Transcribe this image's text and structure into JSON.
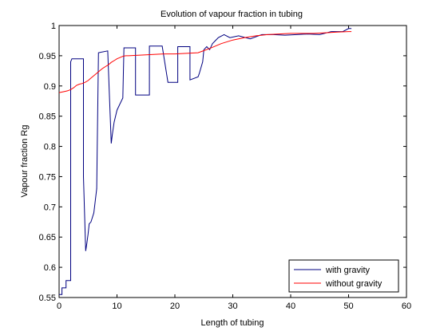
{
  "chart_data": {
    "type": "line",
    "title": "Evolution of vapour fraction in tubing",
    "xlabel": "Length of tubing",
    "ylabel": "Vapour fraction Rg",
    "xlim": [
      0,
      60
    ],
    "ylim": [
      0.55,
      1.0
    ],
    "xticks": [
      0,
      10,
      20,
      30,
      40,
      50,
      60
    ],
    "yticks": [
      0.55,
      0.6,
      0.65,
      0.7,
      0.75,
      0.8,
      0.85,
      0.9,
      0.95,
      1.0
    ],
    "xtick_labels": [
      "0",
      "10",
      "20",
      "30",
      "40",
      "50",
      "60"
    ],
    "ytick_labels": [
      "0.55",
      "0.6",
      "0.65",
      "0.7",
      "0.75",
      "0.8",
      "0.85",
      "0.9",
      "0.95",
      "1"
    ],
    "grid": false,
    "legend_position": "bottom-right",
    "series": [
      {
        "name": "with gravity",
        "color": "#000080",
        "x": [
          0.0,
          0.5,
          0.5,
          1.2,
          1.2,
          2.0,
          2.0,
          2.2,
          2.2,
          4.2,
          4.2,
          4.6,
          4.8,
          5.0,
          5.2,
          5.5,
          6.0,
          6.5,
          6.8,
          6.8,
          8.4,
          8.4,
          9.0,
          9.2,
          9.5,
          10.0,
          10.5,
          11.0,
          11.2,
          11.2,
          13.2,
          13.2,
          13.8,
          13.8,
          15.6,
          15.6,
          17.8,
          17.8,
          18.8,
          18.8,
          20.5,
          20.5,
          22.6,
          22.6,
          24.0,
          24.2,
          24.8,
          25.0,
          25.5,
          26.0,
          26.5,
          27.0,
          27.5,
          28.5,
          29.5,
          31.0,
          33.0,
          35.0,
          37.0,
          39.0,
          41.0,
          43.0,
          45.0,
          47.0,
          49.0,
          50.0,
          50.5
        ],
        "y": [
          0.555,
          0.555,
          0.566,
          0.566,
          0.578,
          0.578,
          0.94,
          0.945,
          0.945,
          0.945,
          0.75,
          0.627,
          0.64,
          0.655,
          0.672,
          0.675,
          0.69,
          0.73,
          0.955,
          0.955,
          0.958,
          0.958,
          0.805,
          0.82,
          0.84,
          0.86,
          0.87,
          0.88,
          0.963,
          0.963,
          0.963,
          0.885,
          0.885,
          0.885,
          0.885,
          0.966,
          0.966,
          0.966,
          0.906,
          0.906,
          0.906,
          0.965,
          0.965,
          0.91,
          0.915,
          0.92,
          0.94,
          0.96,
          0.965,
          0.96,
          0.97,
          0.975,
          0.98,
          0.985,
          0.98,
          0.983,
          0.978,
          0.985,
          0.985,
          0.984,
          0.985,
          0.986,
          0.985,
          0.99,
          0.99,
          0.995,
          0.995
        ]
      },
      {
        "name": "without gravity",
        "color": "#ff0000",
        "x": [
          0.0,
          1.0,
          1.5,
          2.0,
          2.5,
          3.0,
          3.5,
          4.0,
          4.5,
          5.0,
          5.5,
          6.0,
          6.5,
          7.0,
          7.5,
          8.0,
          8.5,
          9.0,
          9.5,
          10.0,
          10.5,
          11.0,
          11.5,
          12.0,
          14.0,
          16.0,
          18.0,
          20.0,
          22.0,
          24.0,
          26.0,
          28.0,
          30.0,
          32.0,
          34.0,
          36.0,
          38.0,
          40.0,
          42.0,
          44.0,
          46.0,
          48.0,
          50.0,
          50.5
        ],
        "y": [
          0.889,
          0.891,
          0.892,
          0.894,
          0.897,
          0.901,
          0.903,
          0.904,
          0.906,
          0.909,
          0.913,
          0.917,
          0.921,
          0.925,
          0.929,
          0.932,
          0.935,
          0.939,
          0.942,
          0.945,
          0.947,
          0.949,
          0.95,
          0.95,
          0.951,
          0.952,
          0.953,
          0.953,
          0.954,
          0.955,
          0.962,
          0.97,
          0.976,
          0.98,
          0.983,
          0.985,
          0.986,
          0.987,
          0.987,
          0.987,
          0.988,
          0.989,
          0.99,
          0.99
        ]
      }
    ]
  }
}
